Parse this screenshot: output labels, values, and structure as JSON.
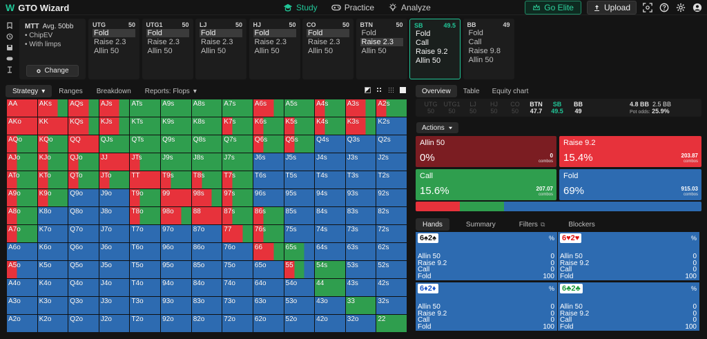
{
  "app": {
    "title": "GTO Wizard",
    "logo_mark": "W"
  },
  "nav": [
    {
      "label": "Study",
      "icon": "graduation-cap-icon",
      "active": true
    },
    {
      "label": "Practice",
      "icon": "gamepad-icon",
      "active": false
    },
    {
      "label": "Analyze",
      "icon": "lightbulb-icon",
      "active": false
    }
  ],
  "topbar": {
    "elite_label": "Go Elite",
    "upload_label": "Upload"
  },
  "mtt": {
    "title": "MTT",
    "stack": "Avg. 50bb",
    "lines": [
      "ChipEV",
      "With limps"
    ],
    "change_label": "Change"
  },
  "positions": [
    {
      "name": "UTG",
      "stack": "50",
      "actions": [
        "Fold",
        "Raise 2.3",
        "Allin 50"
      ],
      "selected": 0
    },
    {
      "name": "UTG1",
      "stack": "50",
      "actions": [
        "Fold",
        "Raise 2.3",
        "Allin 50"
      ],
      "selected": 0
    },
    {
      "name": "LJ",
      "stack": "50",
      "actions": [
        "Fold",
        "Raise 2.3",
        "Allin 50"
      ],
      "selected": 0
    },
    {
      "name": "HJ",
      "stack": "50",
      "actions": [
        "Fold",
        "Raise 2.3",
        "Allin 50"
      ],
      "selected": 0
    },
    {
      "name": "CO",
      "stack": "50",
      "actions": [
        "Fold",
        "Raise 2.3",
        "Allin 50"
      ],
      "selected": 0
    },
    {
      "name": "BTN",
      "stack": "50",
      "actions": [
        "Fold",
        "Raise 2.3",
        "Allin 50"
      ],
      "selected": 1
    },
    {
      "name": "SB",
      "stack": "49.5",
      "actions": [
        "Fold",
        "Call",
        "Raise 9.2",
        "Allin 50"
      ],
      "selected": -1,
      "active": true
    },
    {
      "name": "BB",
      "stack": "49",
      "actions": [
        "Fold",
        "Call",
        "Raise 9.8",
        "Allin 50"
      ],
      "selected": -1
    }
  ],
  "left_tabs": [
    {
      "label": "Strategy",
      "active": true,
      "dropdown": true
    },
    {
      "label": "Ranges"
    },
    {
      "label": "Breakdown"
    },
    {
      "label": "Reports: Flops",
      "dropdown": true
    }
  ],
  "right_tabs": [
    {
      "label": "Overview",
      "active": true
    },
    {
      "label": "Table"
    },
    {
      "label": "Equity chart"
    }
  ],
  "posrow": {
    "items": [
      {
        "name": "UTG",
        "val": "50",
        "style": "dim"
      },
      {
        "name": "UTG1",
        "val": "50",
        "style": "dim"
      },
      {
        "name": "LJ",
        "val": "50",
        "style": "dim"
      },
      {
        "name": "HJ",
        "val": "50",
        "style": "dim"
      },
      {
        "name": "CO",
        "val": "50",
        "style": "dim"
      },
      {
        "name": "BTN",
        "val": "47.7",
        "style": "bright"
      },
      {
        "name": "SB",
        "val": "49.5",
        "style": "sb"
      },
      {
        "name": "BB",
        "val": "49",
        "style": "bright"
      }
    ],
    "pot": "4.8 BB",
    "pot2": "2.5 BB",
    "pot_odds_label": "Pot odds:",
    "pot_odds": "25.9%"
  },
  "actions_label": "Actions",
  "action_boxes": {
    "allin": {
      "name": "Allin 50",
      "pct": "0%",
      "combos": "0",
      "combos_label": "combos"
    },
    "raise": {
      "name": "Raise 9.2",
      "pct": "15.4%",
      "combos": "203.87",
      "combos_label": "combos"
    },
    "call": {
      "name": "Call",
      "pct": "15.6%",
      "combos": "207.07",
      "combos_label": "combos"
    },
    "fold": {
      "name": "Fold",
      "pct": "69%",
      "combos": "915.03",
      "combos_label": "combos"
    }
  },
  "freq": {
    "raise": 15.4,
    "call": 15.6,
    "fold": 69
  },
  "colors": {
    "allin": "#7b1d22",
    "raise": "#e7323b",
    "call": "#2f9e4e",
    "fold": "#2d6bb1",
    "accent": "#21c597"
  },
  "bottom_tabs": [
    {
      "label": "Hands",
      "active": true
    },
    {
      "label": "Summary"
    },
    {
      "label": "Filters"
    },
    {
      "label": "Blockers"
    }
  ],
  "hand_boxes": [
    {
      "r1": "6",
      "s1": "♠",
      "r2": "2",
      "s2": "♠",
      "c1": "black",
      "c2": "black",
      "pct": "%",
      "rows": [
        [
          "Allin 50",
          "0"
        ],
        [
          "Raise 9.2",
          "0"
        ],
        [
          "Call",
          "0"
        ],
        [
          "Fold",
          "100"
        ]
      ]
    },
    {
      "r1": "6",
      "s1": "♥",
      "r2": "2",
      "s2": "♥",
      "c1": "red",
      "c2": "red",
      "pct": "%",
      "rows": [
        [
          "Allin 50",
          "0"
        ],
        [
          "Raise 9.2",
          "0"
        ],
        [
          "Call",
          "0"
        ],
        [
          "Fold",
          "100"
        ]
      ]
    },
    {
      "r1": "6",
      "s1": "♦",
      "r2": "2",
      "s2": "♦",
      "c1": "blue",
      "c2": "blue",
      "pct": "%",
      "rows": [
        [
          "Allin 50",
          "0"
        ],
        [
          "Raise 9.2",
          "0"
        ],
        [
          "Call",
          "0"
        ],
        [
          "Fold",
          "100"
        ]
      ]
    },
    {
      "r1": "6",
      "s1": "♣",
      "r2": "2",
      "s2": "♣",
      "c1": "green",
      "c2": "green",
      "pct": "%",
      "rows": [
        [
          "Allin 50",
          "0"
        ],
        [
          "Raise 9.2",
          "0"
        ],
        [
          "Call",
          "0"
        ],
        [
          "Fold",
          "100"
        ]
      ]
    }
  ],
  "matrix": {
    "ranks": [
      "A",
      "K",
      "Q",
      "J",
      "T",
      "9",
      "8",
      "7",
      "6",
      "5",
      "4",
      "3",
      "2"
    ],
    "rows": [
      [
        "RRR",
        "RRG",
        "RRG",
        "RRG",
        "GGG",
        "GGG",
        "GGG",
        "GGG",
        "RRG",
        "GGG",
        "RGG",
        "RRG",
        "RGG"
      ],
      [
        "RRR",
        "RRR",
        "RRG",
        "RRG",
        "GGG",
        "GGG",
        "GGG",
        "RGG",
        "RGG",
        "RGG",
        "RGG",
        "RRG",
        "BBB"
      ],
      [
        "RGG",
        "RGG",
        "RRR",
        "GGG",
        "GGG",
        "GGG",
        "GGG",
        "GGG",
        "RGG",
        "RGG",
        "BBB",
        "BBB",
        "BBB"
      ],
      [
        "RGG",
        "RGG",
        "RGG",
        "RRR",
        "RGG",
        "GGG",
        "GGG",
        "GGG",
        "BBB",
        "BBB",
        "BBB",
        "BBB",
        "BBB"
      ],
      [
        "RGG",
        "RGG",
        "RGG",
        "RGG",
        "RRR",
        "RGG",
        "RGG",
        "RGG",
        "BBB",
        "BBB",
        "BBB",
        "BBB",
        "BBB"
      ],
      [
        "RGG",
        "RGG",
        "BBB",
        "BBB",
        "RGG",
        "RRR",
        "RRG",
        "RGG",
        "BBB",
        "BBB",
        "BBB",
        "BBB",
        "BBB"
      ],
      [
        "RGG",
        "BBB",
        "BBB",
        "BBB",
        "RGG",
        "RRG",
        "RRR",
        "RGG",
        "RGG",
        "BBB",
        "BBB",
        "BBB",
        "BBB"
      ],
      [
        "RGG",
        "BBB",
        "BBB",
        "BBB",
        "BBB",
        "BBB",
        "BBB",
        "RRG",
        "RGG",
        "BBB",
        "BBB",
        "BBB",
        "BBB"
      ],
      [
        "BBB",
        "BBB",
        "BBB",
        "BBB",
        "BBB",
        "BBB",
        "BBB",
        "BBB",
        "RRG",
        "GGB",
        "BBB",
        "BBB",
        "BBB"
      ],
      [
        "RBB",
        "BBB",
        "BBB",
        "BBB",
        "BBB",
        "BBB",
        "BBB",
        "BBB",
        "BBB",
        "RGB",
        "GGG",
        "BBB",
        "BBB"
      ],
      [
        "BBB",
        "BBB",
        "BBB",
        "BBB",
        "BBB",
        "BBB",
        "BBB",
        "BBB",
        "BBB",
        "BBB",
        "GGG",
        "BBB",
        "BBB"
      ],
      [
        "BBB",
        "BBB",
        "BBB",
        "BBB",
        "BBB",
        "BBB",
        "BBB",
        "BBB",
        "BBB",
        "BBB",
        "BBB",
        "GGG",
        "BBB"
      ],
      [
        "BBB",
        "BBB",
        "BBB",
        "BBB",
        "BBB",
        "BBB",
        "BBB",
        "BBB",
        "BBB",
        "BBB",
        "BBB",
        "BBB",
        "GGG"
      ]
    ]
  }
}
